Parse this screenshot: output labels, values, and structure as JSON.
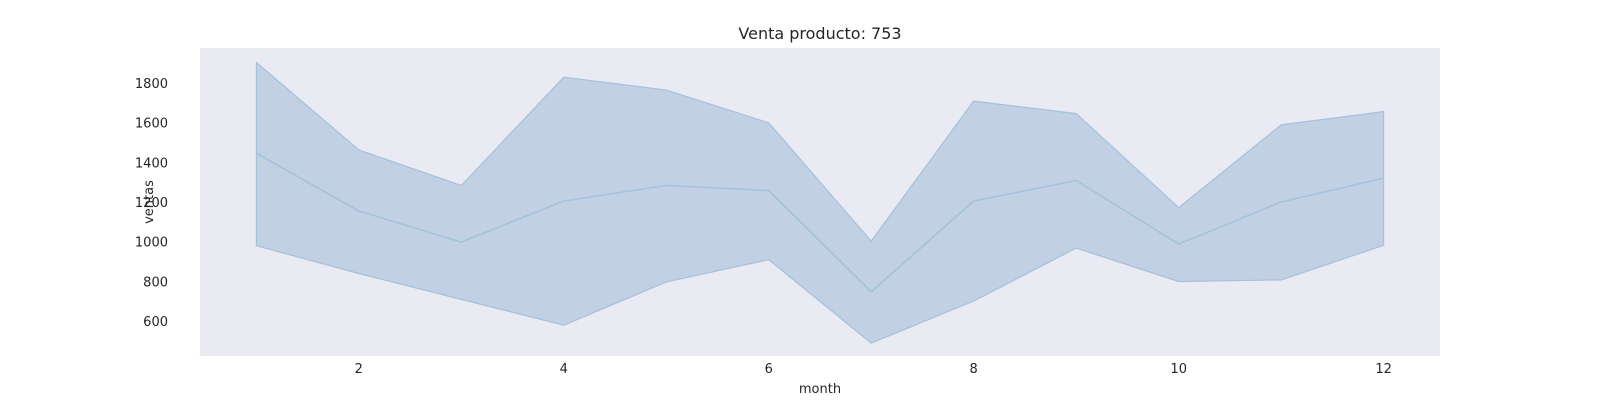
{
  "chart_data": {
    "type": "line",
    "title": "Venta producto: 753",
    "xlabel": "month",
    "ylabel": "ventas",
    "x": [
      1,
      2,
      3,
      4,
      5,
      6,
      7,
      8,
      9,
      10,
      11,
      12
    ],
    "series": [
      {
        "values": [
          1445,
          1155,
          998,
          1205,
          1283,
          1258,
          748,
          1205,
          1308,
          988,
          1200,
          1320
        ],
        "ci_low": [
          980,
          840,
          710,
          580,
          798,
          910,
          490,
          702,
          968,
          800,
          808,
          982
        ],
        "ci_high": [
          1902,
          1462,
          1283,
          1828,
          1763,
          1598,
          1003,
          1708,
          1645,
          1172,
          1588,
          1655
        ]
      }
    ],
    "xticks": [
      2,
      4,
      6,
      8,
      10,
      12
    ],
    "yticks": [
      600,
      800,
      1000,
      1200,
      1400,
      1600,
      1800
    ],
    "xlim": [
      0.45,
      12.55
    ],
    "ylim": [
      425,
      1975
    ],
    "grid": false,
    "colors": {
      "plot_background": "#eaeaf2",
      "line": "#a3c2dc",
      "band": "#c1d1e3"
    }
  }
}
